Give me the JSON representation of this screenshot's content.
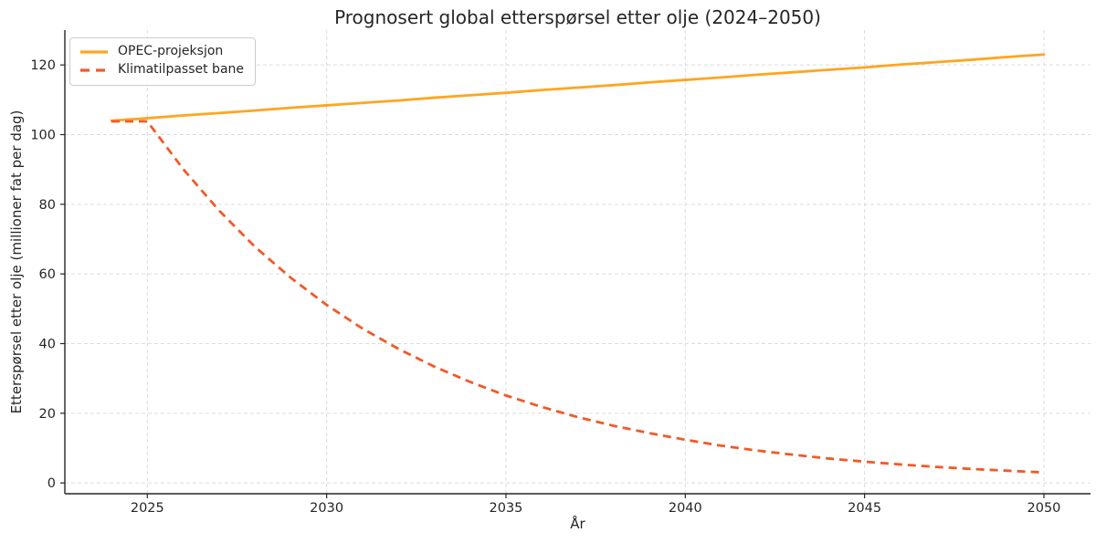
{
  "chart_data": {
    "type": "line",
    "title": "Prognosert global etterspørsel etter olje (2024–2050)",
    "xlabel": "År",
    "ylabel": "Etterspørsel etter olje (millioner fat per dag)",
    "x": [
      2024,
      2025,
      2026,
      2027,
      2028,
      2029,
      2030,
      2031,
      2032,
      2033,
      2034,
      2035,
      2036,
      2037,
      2038,
      2039,
      2040,
      2041,
      2042,
      2043,
      2044,
      2045,
      2046,
      2047,
      2048,
      2049,
      2050
    ],
    "series": [
      {
        "name": "OPEC-projeksjon",
        "color": "#ffa520",
        "dash": "solid",
        "values": [
          104.0,
          104.7,
          105.5,
          106.2,
          106.9,
          107.7,
          108.4,
          109.1,
          109.8,
          110.6,
          111.3,
          112.0,
          112.8,
          113.5,
          114.2,
          115.0,
          115.7,
          116.4,
          117.2,
          117.9,
          118.6,
          119.3,
          120.1,
          120.8,
          121.5,
          122.3,
          123.0
        ]
      },
      {
        "name": "Klimatilpasset bane",
        "color": "#f05a28",
        "dash": "dashed",
        "values": [
          103.8,
          103.8,
          90.1,
          78.2,
          67.8,
          58.9,
          51.1,
          44.3,
          38.5,
          33.4,
          29.0,
          25.1,
          21.8,
          18.9,
          16.4,
          14.3,
          12.4,
          10.7,
          9.3,
          8.1,
          7.0,
          6.1,
          5.3,
          4.6,
          4.0,
          3.5,
          3.0
        ]
      }
    ],
    "xlim": [
      2022.7,
      2051.3
    ],
    "ylim": [
      -3.1,
      130.0
    ],
    "xticks": [
      2025,
      2030,
      2035,
      2040,
      2045,
      2050
    ],
    "yticks": [
      0,
      20,
      40,
      60,
      80,
      100,
      120
    ],
    "grid": true,
    "grid_color": "#dcdcdc",
    "axis_color": "#262626",
    "legend_position": "upper-left"
  }
}
